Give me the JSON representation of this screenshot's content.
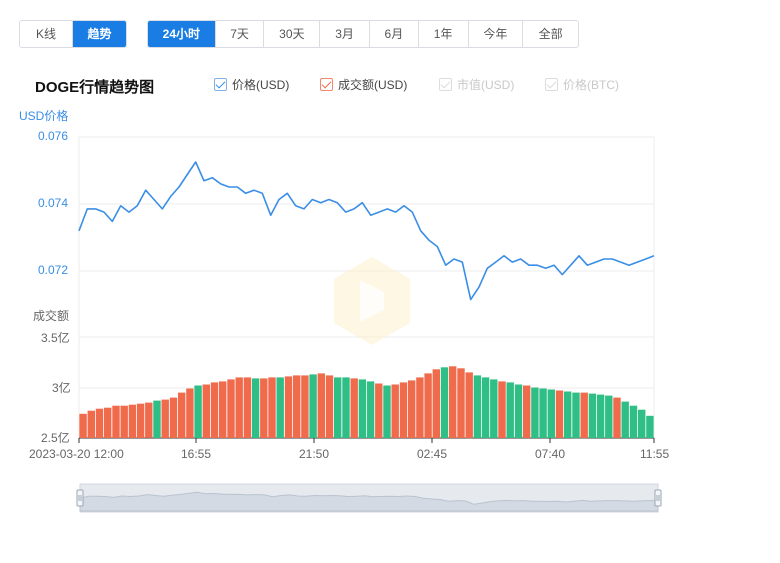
{
  "toolbar": {
    "view_buttons": [
      {
        "label": "K线",
        "active": false
      },
      {
        "label": "趋势",
        "active": true
      }
    ],
    "range_buttons": [
      {
        "label": "24小时",
        "active": true
      },
      {
        "label": "7天",
        "active": false
      },
      {
        "label": "30天",
        "active": false
      },
      {
        "label": "3月",
        "active": false
      },
      {
        "label": "6月",
        "active": false
      },
      {
        "label": "1年",
        "active": false
      },
      {
        "label": "今年",
        "active": false
      },
      {
        "label": "全部",
        "active": false
      }
    ]
  },
  "legend": [
    {
      "label": "价格(USD)",
      "checked": true,
      "color": "#3a8ee6"
    },
    {
      "label": "成交额(USD)",
      "checked": true,
      "color": "#f06a4c"
    },
    {
      "label": "市值(USD)",
      "checked": false,
      "color": "#cccccc"
    },
    {
      "label": "价格(BTC)",
      "checked": false,
      "color": "#cccccc"
    }
  ],
  "colors": {
    "price_line": "#3a8ee6",
    "volume_up": "#f06a4c",
    "volume_down": "#2fbf86",
    "grid": "#eeeeee",
    "navigator": "#dfe4ea"
  },
  "chart_data": {
    "type": "line",
    "title": "DOGE行情趋势图",
    "price_axis": {
      "label": "USD价格",
      "ticks": [
        "0.076",
        "0.074",
        "0.072"
      ],
      "ylim": [
        0.0705,
        0.076
      ]
    },
    "volume_axis": {
      "label": "成交额",
      "ticks": [
        "3.5亿",
        "3亿",
        "2.5亿"
      ],
      "ylim": [
        250000000,
        350000000
      ]
    },
    "x_tick_labels": [
      "2023-03-20 12:00",
      "16:55",
      "21:50",
      "02:45",
      "07:40",
      "11:55"
    ],
    "price_series": {
      "name": "价格(USD)",
      "values": [
        0.073,
        0.0737,
        0.0737,
        0.0736,
        0.0733,
        0.0738,
        0.0736,
        0.0738,
        0.0743,
        0.074,
        0.0737,
        0.0741,
        0.0744,
        0.0748,
        0.0752,
        0.0746,
        0.0747,
        0.0745,
        0.0744,
        0.0744,
        0.0742,
        0.0743,
        0.0742,
        0.0735,
        0.074,
        0.0742,
        0.0738,
        0.0737,
        0.074,
        0.0739,
        0.074,
        0.0739,
        0.0736,
        0.0737,
        0.0739,
        0.0735,
        0.0736,
        0.0737,
        0.0736,
        0.0738,
        0.0736,
        0.073,
        0.0727,
        0.0725,
        0.0719,
        0.0721,
        0.072,
        0.0708,
        0.0712,
        0.0718,
        0.072,
        0.0722,
        0.072,
        0.0721,
        0.0719,
        0.0719,
        0.0718,
        0.0719,
        0.0716,
        0.0719,
        0.0722,
        0.0719,
        0.072,
        0.0721,
        0.0721,
        0.072,
        0.0719,
        0.072,
        0.0721,
        0.0722
      ]
    },
    "volume_series": {
      "name": "成交额(USD)",
      "values": [
        274000000.0,
        277000000.0,
        279000000.0,
        280000000.0,
        282000000.0,
        282000000.0,
        283000000.0,
        284000000.0,
        285000000.0,
        287000000.0,
        288000000.0,
        290000000.0,
        295000000.0,
        299000000.0,
        302000000.0,
        303000000.0,
        305000000.0,
        306000000.0,
        308000000.0,
        310000000.0,
        310000000.0,
        309000000.0,
        309000000.0,
        310000000.0,
        310000000.0,
        311000000.0,
        312000000.0,
        312000000.0,
        313000000.0,
        314000000.0,
        312000000.0,
        310000000.0,
        310000000.0,
        309000000.0,
        308000000.0,
        306000000.0,
        304000000.0,
        302000000.0,
        303000000.0,
        305000000.0,
        307000000.0,
        310000000.0,
        314000000.0,
        318000000.0,
        320000000.0,
        321000000.0,
        319000000.0,
        315000000.0,
        312000000.0,
        310000000.0,
        308000000.0,
        306000000.0,
        305000000.0,
        303000000.0,
        302000000.0,
        300000000.0,
        299000000.0,
        298000000.0,
        297000000.0,
        296000000.0,
        295000000.0,
        295000000.0,
        294000000.0,
        293000000.0,
        292000000.0,
        290000000.0,
        286000000.0,
        282000000.0,
        278000000.0,
        272000000.0
      ],
      "direction": [
        1,
        1,
        1,
        1,
        1,
        1,
        1,
        1,
        1,
        0,
        1,
        1,
        1,
        1,
        0,
        1,
        1,
        1,
        1,
        1,
        1,
        0,
        1,
        1,
        0,
        1,
        1,
        1,
        0,
        1,
        1,
        0,
        0,
        1,
        0,
        0,
        1,
        0,
        1,
        1,
        1,
        1,
        1,
        1,
        0,
        1,
        1,
        1,
        0,
        0,
        0,
        1,
        0,
        0,
        1,
        0,
        0,
        0,
        1,
        0,
        0,
        1,
        0,
        0,
        0,
        1,
        0,
        0,
        0,
        0
      ]
    }
  }
}
